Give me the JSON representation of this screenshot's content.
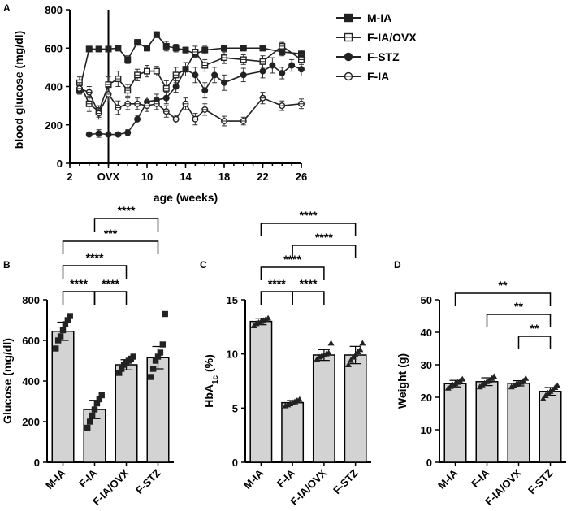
{
  "chart_data": [
    {
      "panel": "A",
      "type": "line",
      "xlabel": "age (weeks)",
      "ylabel": "blood glucose (mg/dl)",
      "xlim": [
        2,
        26
      ],
      "ylim": [
        0,
        800
      ],
      "xticks": [
        "2",
        "6",
        "10",
        "14",
        "18",
        "22",
        "26"
      ],
      "ovx_label": "OVX",
      "ovx_week": 6,
      "yticks": [
        0,
        200,
        400,
        600,
        800
      ],
      "legend_position": "right",
      "series": [
        {
          "name": "M-IA",
          "marker": "square-filled",
          "x": [
            3,
            4,
            5,
            6,
            7,
            8,
            9,
            10,
            11,
            12,
            13,
            14,
            15,
            16,
            18,
            20,
            22,
            24,
            26
          ],
          "y": [
            380,
            595,
            595,
            595,
            600,
            540,
            630,
            600,
            670,
            610,
            600,
            590,
            570,
            590,
            600,
            600,
            600,
            580,
            570
          ],
          "err": [
            15,
            15,
            10,
            10,
            15,
            20,
            15,
            15,
            15,
            25,
            20,
            15,
            15,
            20,
            15,
            15,
            15,
            20,
            20
          ]
        },
        {
          "name": "F-IA/OVX",
          "marker": "square-open",
          "x": [
            3,
            4,
            5,
            6,
            7,
            8,
            9,
            10,
            11,
            12,
            13,
            14,
            15,
            16,
            18,
            20,
            22,
            24,
            26
          ],
          "y": [
            420,
            310,
            270,
            410,
            440,
            380,
            460,
            480,
            480,
            390,
            460,
            490,
            580,
            510,
            550,
            540,
            530,
            610,
            540
          ],
          "err": [
            30,
            40,
            30,
            40,
            40,
            30,
            30,
            30,
            25,
            40,
            40,
            35,
            30,
            30,
            30,
            25,
            30,
            20,
            25
          ]
        },
        {
          "name": "F-STZ",
          "marker": "circle-filled",
          "x": [
            4,
            5,
            6,
            7,
            8,
            9,
            10,
            11,
            12,
            13,
            14,
            15,
            16,
            17,
            18,
            20,
            22,
            23,
            24,
            25,
            26
          ],
          "y": [
            150,
            155,
            150,
            150,
            160,
            230,
            320,
            330,
            340,
            400,
            490,
            460,
            380,
            460,
            420,
            460,
            480,
            510,
            470,
            510,
            490
          ],
          "err": [
            10,
            20,
            10,
            10,
            15,
            20,
            25,
            30,
            30,
            30,
            35,
            40,
            40,
            40,
            40,
            35,
            35,
            40,
            30,
            30,
            35
          ]
        },
        {
          "name": "F-IA",
          "marker": "circle-open",
          "x": [
            3,
            4,
            5,
            6,
            7,
            8,
            9,
            10,
            11,
            12,
            13,
            14,
            15,
            16,
            18,
            20,
            22,
            24,
            26
          ],
          "y": [
            390,
            370,
            260,
            360,
            290,
            310,
            310,
            300,
            310,
            270,
            230,
            310,
            230,
            280,
            220,
            220,
            340,
            300,
            310
          ],
          "err": [
            30,
            30,
            30,
            40,
            35,
            30,
            30,
            30,
            30,
            30,
            20,
            30,
            30,
            30,
            25,
            20,
            30,
            25,
            25
          ]
        }
      ]
    },
    {
      "panel": "B",
      "type": "bar",
      "ylabel": "Glucose (mg/dl)",
      "categories": [
        "M-IA",
        "F-IA",
        "F-IA/OVX",
        "F-STZ"
      ],
      "values": [
        645,
        260,
        480,
        515
      ],
      "err": [
        45,
        45,
        25,
        55
      ],
      "ylim": [
        0,
        800
      ],
      "yticks": [
        0,
        200,
        400,
        600,
        800
      ],
      "point_marker": "square-filled",
      "points": [
        [
          560,
          600,
          620,
          650,
          680,
          700,
          720
        ],
        [
          170,
          200,
          230,
          260,
          290,
          310,
          330
        ],
        [
          440,
          460,
          480,
          490,
          500,
          510,
          520
        ],
        [
          420,
          460,
          500,
          520,
          540,
          580,
          730
        ]
      ],
      "comparisons": [
        {
          "a": 0,
          "b": 1,
          "label": "****"
        },
        {
          "a": 1,
          "b": 2,
          "label": "****"
        },
        {
          "a": 0,
          "b": 2,
          "label": "****"
        },
        {
          "a": 0,
          "b": 3,
          "label": "***"
        },
        {
          "a": 1,
          "b": 3,
          "label": "****"
        }
      ]
    },
    {
      "panel": "C",
      "type": "bar",
      "ylabel": "HbA1c (%)",
      "categories": [
        "M-IA",
        "F-IA",
        "F-IA/OVX",
        "F-STZ"
      ],
      "values": [
        13.0,
        5.5,
        9.9,
        9.9
      ],
      "err": [
        0.3,
        0.2,
        0.5,
        0.8
      ],
      "ylim": [
        0,
        15
      ],
      "yticks": [
        0,
        5,
        10,
        15
      ],
      "point_marker": "triangle-filled",
      "points": [
        [
          12.6,
          12.8,
          12.9,
          13.0,
          13.1,
          13.2,
          13.3
        ],
        [
          5.2,
          5.3,
          5.4,
          5.5,
          5.6,
          5.7,
          5.8
        ],
        [
          9.5,
          9.7,
          9.8,
          9.9,
          10.0,
          10.1,
          11.0
        ],
        [
          9.0,
          9.4,
          9.7,
          9.9,
          10.2,
          10.4,
          11.0
        ]
      ],
      "comparisons": [
        {
          "a": 0,
          "b": 1,
          "label": "****"
        },
        {
          "a": 1,
          "b": 2,
          "label": "****"
        },
        {
          "a": 0,
          "b": 2,
          "label": "****"
        },
        {
          "a": 1,
          "b": 3,
          "label": "****"
        },
        {
          "a": 0,
          "b": 3,
          "label": "****"
        }
      ]
    },
    {
      "panel": "D",
      "type": "bar",
      "ylabel": "Weight (g)",
      "categories": [
        "M-IA",
        "F-IA",
        "F-IA/OVX",
        "F-STZ"
      ],
      "values": [
        24.2,
        24.8,
        24.3,
        21.8
      ],
      "err": [
        1.0,
        1.2,
        0.8,
        1.2
      ],
      "ylim": [
        0,
        50
      ],
      "yticks": [
        0,
        10,
        20,
        30,
        40,
        50
      ],
      "point_marker": "triangle-filled",
      "points": [
        [
          22.8,
          23.3,
          23.8,
          24.2,
          24.6,
          25.0,
          25.6
        ],
        [
          23.2,
          23.8,
          24.3,
          24.8,
          25.2,
          25.8,
          26.4
        ],
        [
          23.2,
          23.6,
          24.0,
          24.3,
          24.6,
          25.0,
          25.8
        ],
        [
          19.5,
          20.5,
          21.3,
          21.8,
          22.3,
          23.0,
          23.6
        ]
      ],
      "comparisons": [
        {
          "a": 2,
          "b": 3,
          "label": "**"
        },
        {
          "a": 1,
          "b": 3,
          "label": "**"
        },
        {
          "a": 0,
          "b": 3,
          "label": "**"
        }
      ]
    }
  ]
}
